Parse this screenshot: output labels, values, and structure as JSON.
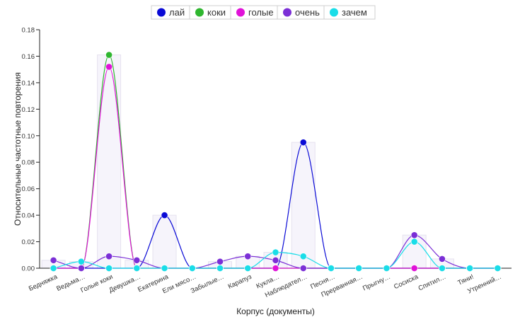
{
  "chart_data": {
    "type": "line",
    "xlabel": "Корпус (документы)",
    "ylabel": "Относительные частотные повторения",
    "ylim": [
      0,
      0.18
    ],
    "yticks": [
      "0.00",
      "0.02",
      "0.04",
      "0.06",
      "0.08",
      "0.10",
      "0.12",
      "0.14",
      "0.16",
      "0.18"
    ],
    "categories": [
      "Бедняжка",
      "Ведьма…",
      "Голые коки",
      "Девушка…",
      "Екатерина",
      "Ели мясо…",
      "Забылые…",
      "Карапуз",
      "Кукла…",
      "Наблюдател…",
      "Песня…",
      "Прерванная…",
      "Прыгну…",
      "Сосиска",
      "Спятил…",
      "Тяни!",
      "Утренний…"
    ],
    "legend_position": "top",
    "grid": false,
    "series": [
      {
        "name": "лай",
        "color": "#0a0ad6",
        "values": [
          0.0,
          0.0,
          0.0,
          0.0,
          0.04,
          0.0,
          0.0,
          0.0,
          0.0,
          0.095,
          0.0,
          0.0,
          0.0,
          0.0,
          0.0,
          0.0,
          0.0
        ]
      },
      {
        "name": "коки",
        "color": "#2fb62f",
        "values": [
          0.0,
          0.0,
          0.161,
          0.0,
          0.0,
          0.0,
          0.0,
          0.0,
          0.0,
          0.0,
          0.0,
          0.0,
          0.0,
          0.0,
          0.0,
          0.0,
          0.0
        ]
      },
      {
        "name": "голые",
        "color": "#e012d8",
        "values": [
          0.0,
          0.0,
          0.152,
          0.0,
          0.0,
          0.0,
          0.0,
          0.0,
          0.0,
          0.0,
          0.0,
          0.0,
          0.0,
          0.0,
          0.0,
          0.0,
          0.0
        ]
      },
      {
        "name": "очень",
        "color": "#7b2fd6",
        "values": [
          0.006,
          0.0,
          0.009,
          0.006,
          0.0,
          0.0,
          0.005,
          0.009,
          0.006,
          0.0,
          0.0,
          0.0,
          0.0,
          0.025,
          0.007,
          0.0,
          0.0
        ]
      },
      {
        "name": "зачем",
        "color": "#19dde8",
        "values": [
          0.0,
          0.005,
          0.0,
          0.0,
          0.0,
          0.0,
          0.0,
          0.0,
          0.012,
          0.009,
          0.0,
          0.0,
          0.0,
          0.02,
          0.0,
          0.0,
          0.0
        ]
      }
    ]
  }
}
